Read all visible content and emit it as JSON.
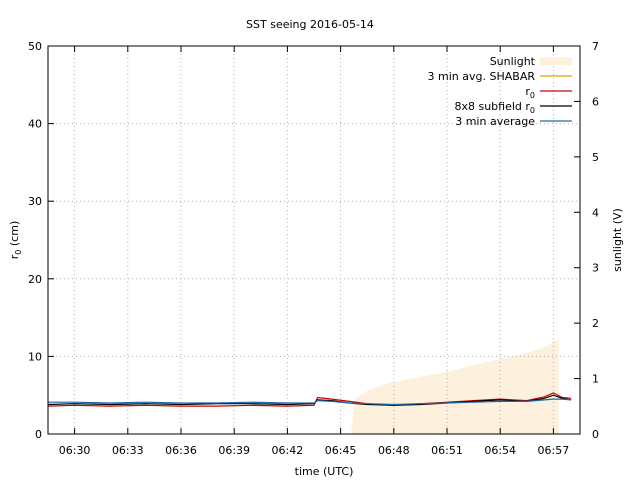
{
  "chart_data": {
    "type": "line",
    "title": "SST seeing 2016-05-14",
    "xlabel": "time (UTC)",
    "ylabel_main": "r",
    "ylabel_sub": "0",
    "ylabel_unit": " (cm)",
    "y2label": "sunlight (V)",
    "x_ticks": [
      "06:30",
      "06:33",
      "06:36",
      "06:39",
      "06:42",
      "06:45",
      "06:48",
      "06:51",
      "06:54",
      "06:57"
    ],
    "x_tick_minutes": [
      30,
      33,
      36,
      39,
      42,
      45,
      48,
      51,
      54,
      57
    ],
    "xlim_minutes": [
      28.5,
      58.5
    ],
    "ylim": [
      0,
      50
    ],
    "y_ticks": [
      0,
      10,
      20,
      30,
      40,
      50
    ],
    "y2lim": [
      0,
      7
    ],
    "y2_ticks": [
      0,
      1,
      2,
      3,
      4,
      5,
      6,
      7
    ],
    "grid": true,
    "legend_position": "top-right",
    "series": [
      {
        "name": "Sunlight",
        "kind": "area",
        "axis": "y2",
        "color": "#fdf0dc",
        "x_minutes": [
          45.6,
          45.8,
          46.5,
          47.5,
          49,
          51,
          53,
          55,
          56.5,
          57.3
        ],
        "values": [
          0.05,
          0.62,
          0.78,
          0.9,
          1.0,
          1.12,
          1.28,
          1.42,
          1.56,
          1.73
        ]
      },
      {
        "name": "3 min avg. SHABAR",
        "kind": "line",
        "axis": "y",
        "color": "#e69f00",
        "x_minutes": [],
        "values": []
      },
      {
        "name": "r",
        "name_sub": "0",
        "kind": "line",
        "axis": "y",
        "color": "#cc0000",
        "x_minutes": [
          28.5,
          30,
          32,
          34,
          36,
          38,
          40,
          42,
          43.5,
          43.7,
          44.5,
          45.5,
          46.5,
          48,
          49.5,
          51,
          52.5,
          54,
          55.5,
          56.5,
          57,
          57.5,
          58
        ],
        "values": [
          3.6,
          3.7,
          3.6,
          3.7,
          3.6,
          3.6,
          3.7,
          3.6,
          3.7,
          4.7,
          4.5,
          4.2,
          3.9,
          3.7,
          3.9,
          4.1,
          4.3,
          4.5,
          4.3,
          4.8,
          5.3,
          4.7,
          4.6
        ]
      },
      {
        "name": "8x8 subfield r",
        "name_sub": "0",
        "kind": "line",
        "axis": "y",
        "color": "#000000",
        "x_minutes": [
          28.5,
          30,
          32,
          34,
          36,
          38,
          40,
          42,
          43.5,
          43.7,
          44.5,
          45.5,
          46.5,
          48,
          49.5,
          51,
          52.5,
          54,
          55.5,
          56.5,
          57,
          57.5,
          58
        ],
        "values": [
          3.8,
          3.9,
          3.8,
          3.9,
          3.8,
          3.9,
          3.9,
          3.8,
          3.9,
          4.4,
          4.3,
          4.0,
          3.8,
          3.7,
          3.8,
          4.0,
          4.2,
          4.4,
          4.2,
          4.6,
          5.0,
          4.6,
          4.4
        ]
      },
      {
        "name": "3 min average",
        "kind": "line",
        "axis": "y",
        "color": "#1f6aa5",
        "x_minutes": [
          28.5,
          30,
          32,
          34,
          36,
          38,
          40,
          42,
          43.5,
          43.7,
          44.5,
          45.5,
          46.5,
          48,
          49.5,
          51,
          52.5,
          54,
          55.5,
          56.5,
          57,
          57.5,
          58
        ],
        "values": [
          4.1,
          4.1,
          4.0,
          4.1,
          4.0,
          4.0,
          4.1,
          4.0,
          4.0,
          4.3,
          4.2,
          4.0,
          3.9,
          3.8,
          3.9,
          4.0,
          4.1,
          4.2,
          4.2,
          4.4,
          4.5,
          4.5,
          4.4
        ]
      }
    ]
  }
}
